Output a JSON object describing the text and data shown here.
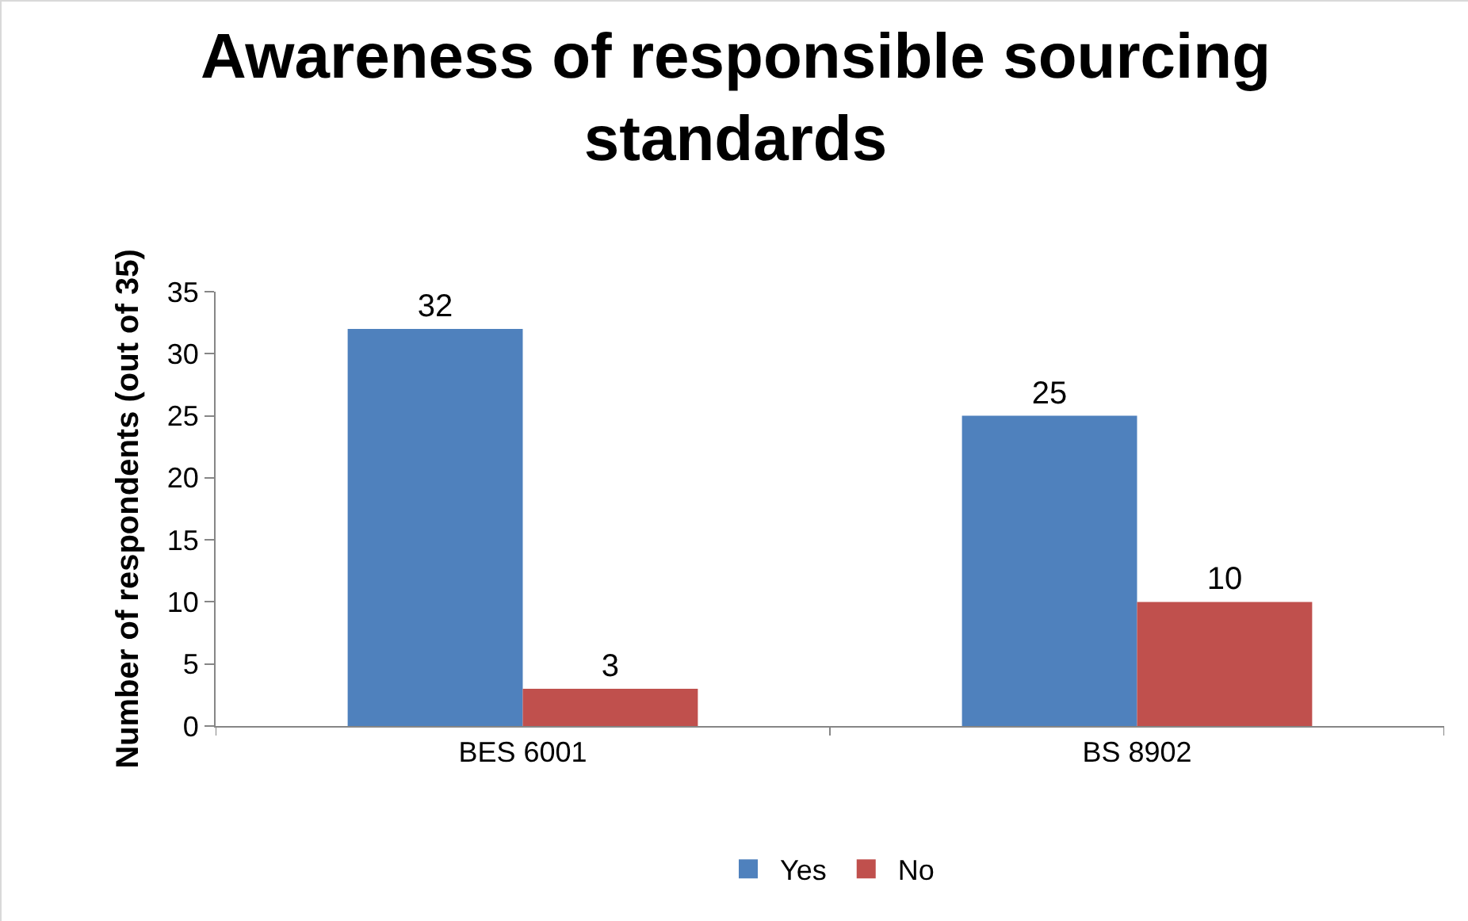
{
  "chart_data": {
    "type": "bar",
    "title": "Awareness of responsible sourcing standards",
    "ylabel": "Number of respondents (out of 35)",
    "categories": [
      "BES 6001",
      "BS 8902"
    ],
    "series": [
      {
        "name": "Yes",
        "color": "#4f81bd",
        "values": [
          32,
          25
        ]
      },
      {
        "name": "No",
        "color": "#c0504d",
        "values": [
          3,
          10
        ]
      }
    ],
    "ylim": [
      0,
      35
    ],
    "yticks": [
      0,
      5,
      10,
      15,
      20,
      25,
      30,
      35
    ],
    "grid": false,
    "legend": "bottom",
    "data_labels": true
  }
}
